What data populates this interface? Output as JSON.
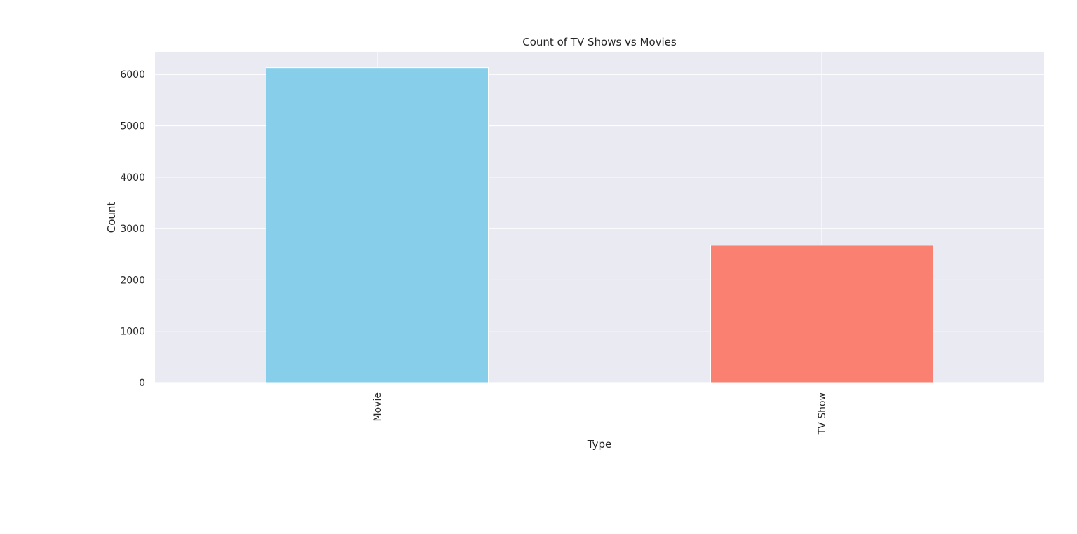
{
  "chart_data": {
    "type": "bar",
    "title": "Count of TV Shows vs Movies",
    "xlabel": "Type",
    "ylabel": "Count",
    "categories": [
      "Movie",
      "TV Show"
    ],
    "values": [
      6131,
      2676
    ],
    "bar_colors": [
      "#87CEEB",
      "#FA8072"
    ],
    "ylim": [
      0,
      6440
    ],
    "yticks": [
      0,
      1000,
      2000,
      3000,
      4000,
      5000,
      6000
    ],
    "grid": true,
    "legend": "none",
    "colors": {
      "plot_background": "#EAEAF2",
      "grid": "#FFFFFF",
      "text": "#262626"
    }
  }
}
